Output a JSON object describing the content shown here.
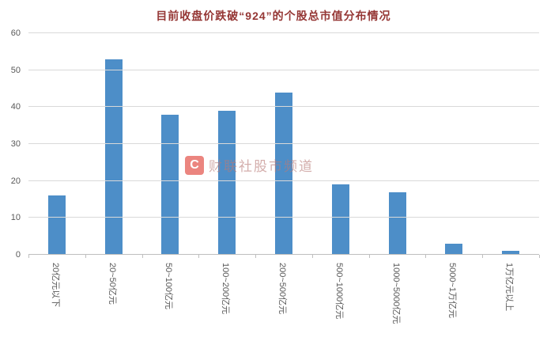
{
  "title": "目前收盘价跌破“924”的个股总市值分布情况",
  "watermark": {
    "icon": "C",
    "text": "财联社股市频道"
  },
  "chart_data": {
    "type": "bar",
    "title": "目前收盘价跌破“924”的个股总市值分布情况",
    "categories": [
      "20亿元以下",
      "20~50亿元",
      "50~100亿元",
      "100~200亿元",
      "200~500亿元",
      "500~1000亿元",
      "1000~5000亿元",
      "5000~1万亿元",
      "1万亿元以上"
    ],
    "values": [
      16,
      53,
      38,
      39,
      44,
      19,
      17,
      3,
      1
    ],
    "xlabel": "",
    "ylabel": "",
    "ylim": [
      0,
      60
    ],
    "ytick_interval": 10,
    "grid": true,
    "legend": "none",
    "bar_color": "#4d8ec8",
    "axis_text_color": "#595959",
    "gridline_color": "#d9d9d9",
    "title_color": "#953735"
  }
}
